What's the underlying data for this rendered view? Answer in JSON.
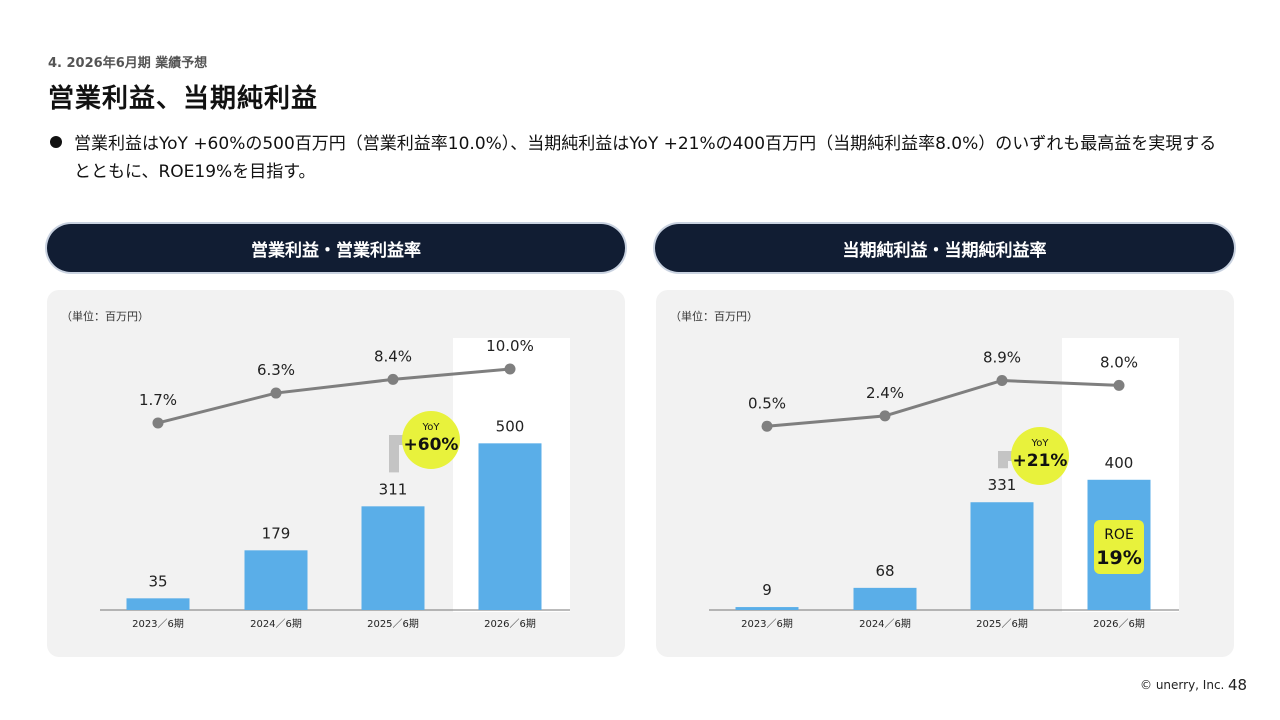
{
  "header": {
    "section": "4. 2026年6月期 業績予想",
    "title": "営業利益、当期純利益"
  },
  "bullet": "営業利益はYoY +60%の500百万円（営業利益率10.0%）、当期純利益はYoY +21%の400百万円（当期純利益率8.0%）のいずれも最高益を実現するとともに、ROE19%を目指す。",
  "colors": {
    "bar": "#5aaee8",
    "line": "#7f7f7f",
    "badge": "#e8f23c",
    "header_bg": "#111d33",
    "panel_bg": "#f2f2f2"
  },
  "panels": [
    {
      "header": "営業利益・営業利益率",
      "unit": "（単位：百万円）"
    },
    {
      "header": "当期純利益・当期純利益率",
      "unit": "（単位：百万円）"
    }
  ],
  "chart_data": [
    {
      "type": "bar",
      "title": "営業利益・営業利益率",
      "unit": "（単位：百万円）",
      "categories": [
        "2023／6期",
        "2024／6期",
        "2025／6期",
        "2026／6期"
      ],
      "series": [
        {
          "type": "bar",
          "values": [
            35,
            179,
            311,
            500
          ],
          "labels": [
            "35",
            "179",
            "311",
            "500"
          ]
        },
        {
          "type": "line",
          "values": [
            1.7,
            6.3,
            8.4,
            10.0
          ],
          "labels": [
            "1.7%",
            "6.3%",
            "8.4%",
            "10.0%"
          ]
        }
      ],
      "yoy_badge": {
        "top": "YoY",
        "value": "+60%"
      },
      "highlight_category": "2026／6期"
    },
    {
      "type": "bar",
      "title": "当期純利益・当期純利益率",
      "unit": "（単位：百万円）",
      "categories": [
        "2023／6期",
        "2024／6期",
        "2025／6期",
        "2026／6期"
      ],
      "series": [
        {
          "type": "bar",
          "values": [
            9,
            68,
            331,
            400
          ],
          "labels": [
            "9",
            "68",
            "331",
            "400"
          ]
        },
        {
          "type": "line",
          "values": [
            0.5,
            2.4,
            8.9,
            8.0
          ],
          "labels": [
            "0.5%",
            "2.4%",
            "8.9%",
            "8.0%"
          ]
        }
      ],
      "yoy_badge": {
        "top": "YoY",
        "value": "+21%"
      },
      "roe_badge": {
        "top": "ROE",
        "value": "19%"
      },
      "highlight_category": "2026／6期"
    }
  ],
  "footer": {
    "copyright": "© unerry, Inc.",
    "page": "48"
  }
}
